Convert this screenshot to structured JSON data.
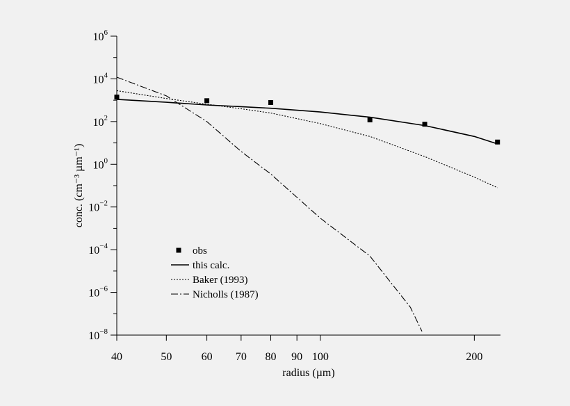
{
  "chart_data": {
    "type": "line",
    "x_scale": "log",
    "y_scale": "log",
    "xlabel": "radius (µm)",
    "ylabel": "conc. (cm⁻³ µm⁻¹)",
    "xlim": [
      40,
      225
    ],
    "ylim_exponents": [
      -8,
      6
    ],
    "x_ticks": [
      40,
      50,
      60,
      70,
      80,
      90,
      100,
      200
    ],
    "x_tick_labels": [
      "40",
      "50",
      "60",
      "70",
      "80",
      "90",
      "100",
      "200"
    ],
    "y_tick_exponents": [
      -8,
      -6,
      -4,
      -2,
      0,
      2,
      4,
      6
    ],
    "y_tick_base": "10",
    "y_tick_exponent_labels": [
      "−8",
      "−6",
      "−4",
      "−2",
      "0",
      "2",
      "4",
      "6"
    ],
    "legend_position": "lower-left",
    "series": [
      {
        "name": "obs",
        "kind": "markers",
        "x": [
          40,
          60,
          80,
          125,
          160,
          222
        ],
        "y": [
          1400,
          950,
          780,
          120,
          75,
          11
        ]
      },
      {
        "name": "this calc.",
        "kind": "solid",
        "x": [
          40,
          50,
          60,
          70,
          80,
          100,
          125,
          160,
          200,
          222
        ],
        "y": [
          1100,
          800,
          600,
          500,
          420,
          280,
          160,
          65,
          20,
          9
        ]
      },
      {
        "name": "Baker (1993)",
        "kind": "dotted",
        "x": [
          40,
          50,
          60,
          70,
          80,
          100,
          125,
          160,
          200,
          222
        ],
        "y": [
          2800,
          1200,
          650,
          400,
          250,
          80,
          20,
          2.3,
          0.25,
          0.08
        ]
      },
      {
        "name": "Nicholls (1987)",
        "kind": "dashdot",
        "x": [
          40,
          50,
          60,
          70,
          80,
          100,
          125,
          150,
          158
        ],
        "y": [
          12000,
          1600,
          100,
          4,
          0.35,
          0.003,
          5e-05,
          2e-07,
          1.5e-08
        ]
      }
    ]
  }
}
